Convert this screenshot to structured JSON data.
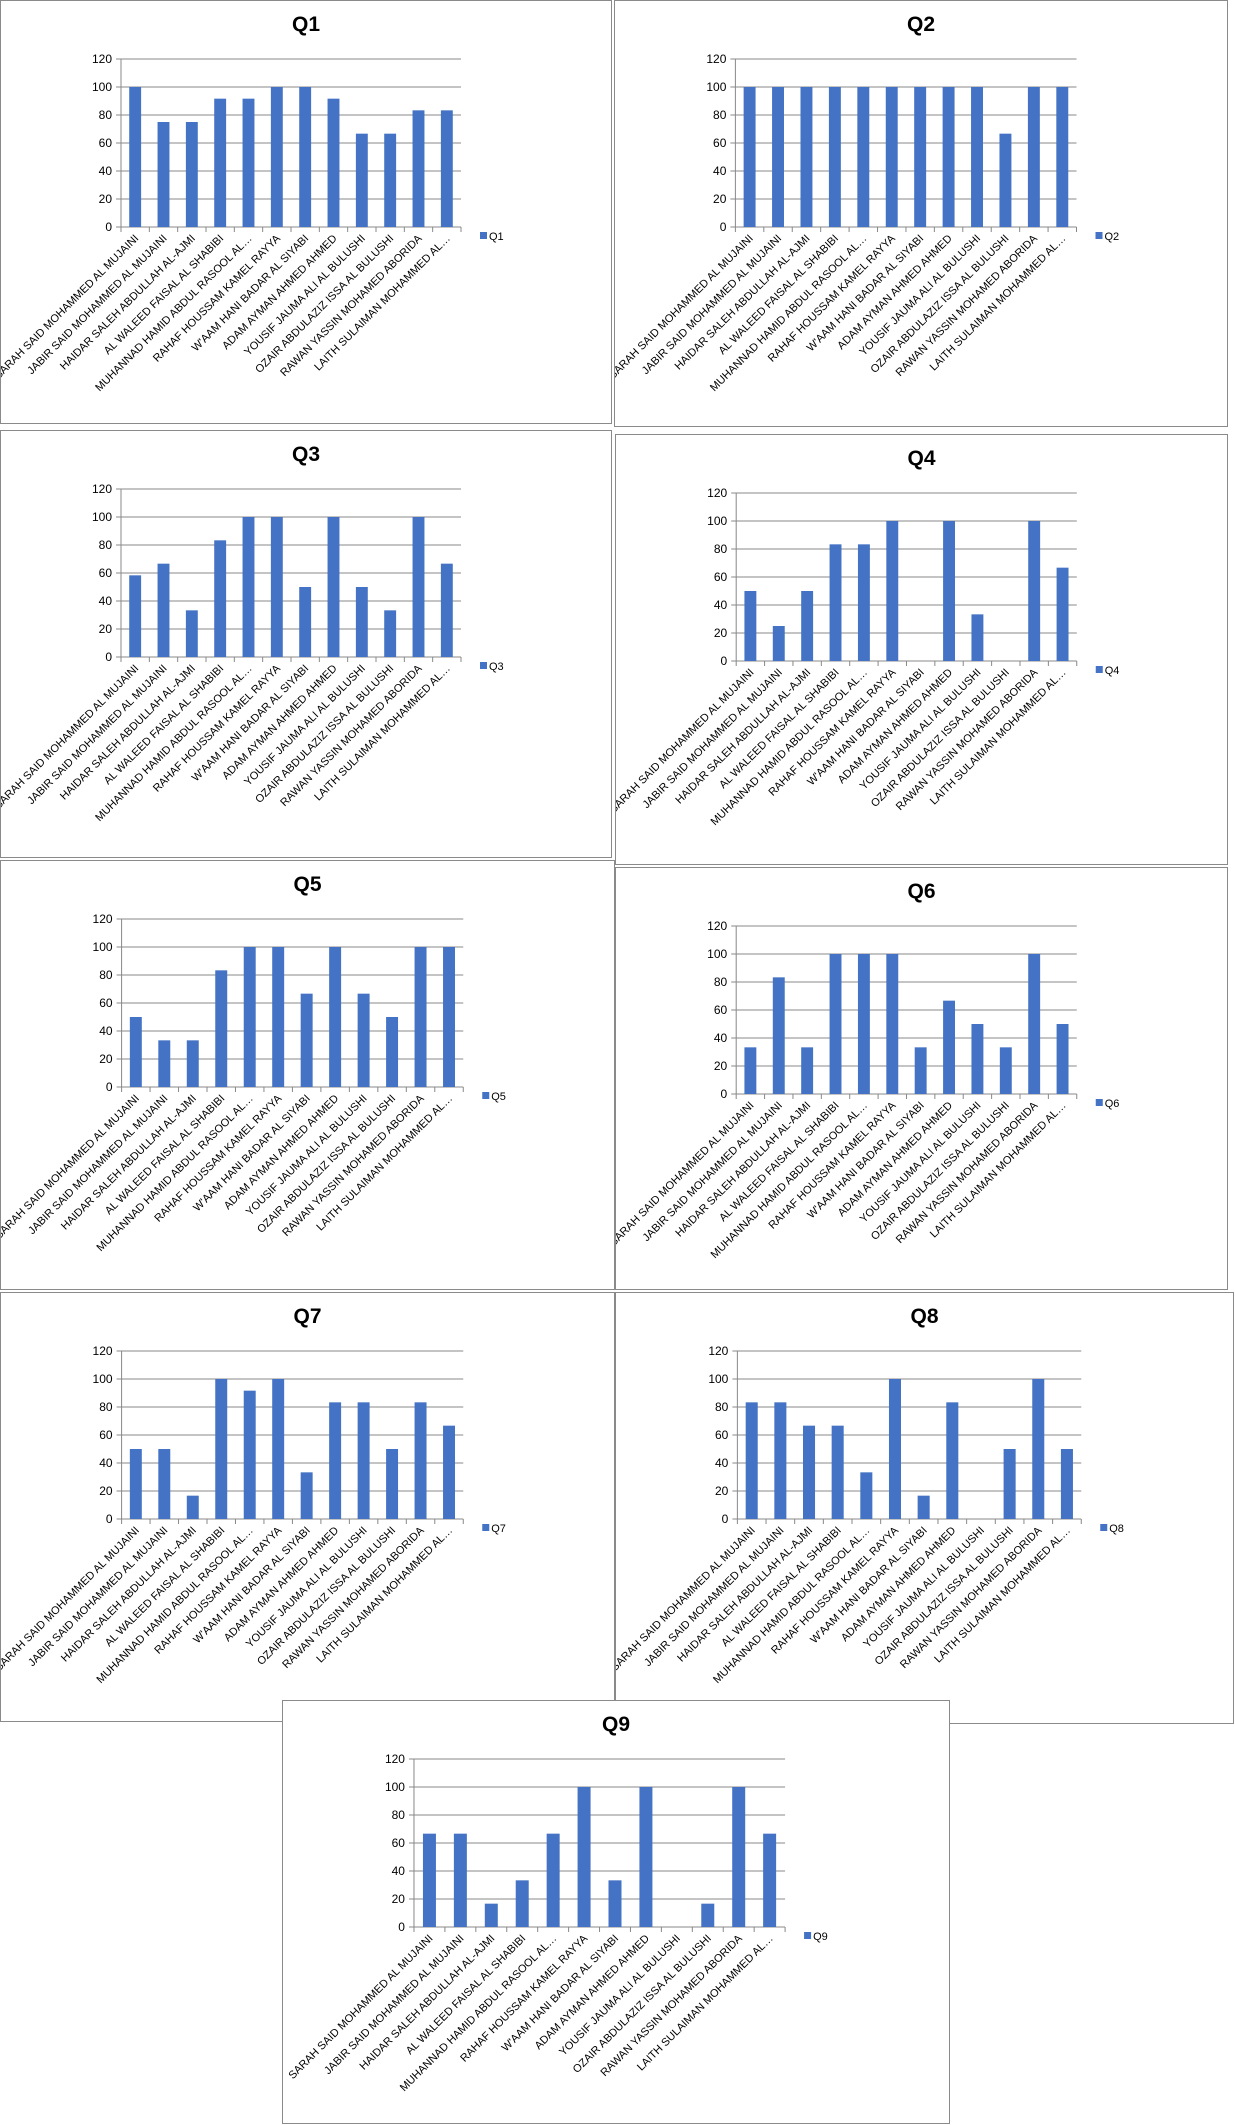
{
  "bar_color": "#4472C4",
  "chart_data": [
    {
      "type": "bar",
      "title": "Q1",
      "legend": "Q1",
      "legend_position": "right",
      "ylim": [
        0,
        120
      ],
      "yticks": [
        0,
        20,
        40,
        60,
        80,
        100,
        120
      ],
      "grid": true,
      "values": [
        100,
        75,
        75,
        91.67,
        91.67,
        100,
        100,
        91.67,
        66.67,
        66.67,
        83.33,
        83.33
      ]
    },
    {
      "type": "bar",
      "title": "Q2",
      "legend": "Q2",
      "legend_position": "right",
      "ylim": [
        0,
        120
      ],
      "yticks": [
        0,
        20,
        40,
        60,
        80,
        100,
        120
      ],
      "grid": true,
      "values": [
        100,
        100,
        100,
        100,
        100,
        100,
        100,
        100,
        100,
        66.67,
        100,
        100
      ]
    },
    {
      "type": "bar",
      "title": "Q3",
      "legend": "Q3",
      "legend_position": "right",
      "ylim": [
        0,
        120
      ],
      "yticks": [
        0,
        20,
        40,
        60,
        80,
        100,
        120
      ],
      "grid": true,
      "values": [
        58.33,
        66.67,
        33.33,
        83.33,
        100,
        100,
        50,
        100,
        50,
        33.33,
        100,
        66.67
      ]
    },
    {
      "type": "bar",
      "title": "Q4",
      "legend": "Q4",
      "legend_position": "right",
      "ylim": [
        0,
        120
      ],
      "yticks": [
        0,
        20,
        40,
        60,
        80,
        100,
        120
      ],
      "grid": true,
      "values": [
        50,
        25,
        50,
        83.33,
        83.33,
        100,
        0,
        100,
        33.33,
        0,
        100,
        66.67
      ]
    },
    {
      "type": "bar",
      "title": "Q5",
      "legend": "Q5",
      "legend_position": "right",
      "ylim": [
        0,
        120
      ],
      "yticks": [
        0,
        20,
        40,
        60,
        80,
        100,
        120
      ],
      "grid": true,
      "values": [
        50,
        33.33,
        33.33,
        83.33,
        100,
        100,
        66.67,
        100,
        66.67,
        50,
        100,
        100
      ]
    },
    {
      "type": "bar",
      "title": "Q6",
      "legend": "Q6",
      "legend_position": "right",
      "ylim": [
        0,
        120
      ],
      "yticks": [
        0,
        20,
        40,
        60,
        80,
        100,
        120
      ],
      "grid": true,
      "values": [
        33.33,
        83.33,
        33.33,
        100,
        100,
        100,
        33.33,
        66.67,
        50,
        33.33,
        100,
        50
      ]
    },
    {
      "type": "bar",
      "title": "Q7",
      "legend": "Q7",
      "legend_position": "right",
      "ylim": [
        0,
        120
      ],
      "yticks": [
        0,
        20,
        40,
        60,
        80,
        100,
        120
      ],
      "grid": true,
      "values": [
        50,
        50,
        16.67,
        100,
        91.67,
        100,
        33.33,
        83.33,
        83.33,
        50,
        83.33,
        66.67
      ]
    },
    {
      "type": "bar",
      "title": "Q8",
      "legend": "Q8",
      "legend_position": "right",
      "ylim": [
        0,
        120
      ],
      "yticks": [
        0,
        20,
        40,
        60,
        80,
        100,
        120
      ],
      "grid": true,
      "values": [
        83.33,
        83.33,
        66.67,
        66.67,
        33.33,
        100,
        16.67,
        83.33,
        0,
        50,
        100,
        50
      ]
    },
    {
      "type": "bar",
      "title": "Q9",
      "legend": "Q9",
      "legend_position": "right",
      "ylim": [
        0,
        120
      ],
      "yticks": [
        0,
        20,
        40,
        60,
        80,
        100,
        120
      ],
      "grid": true,
      "values": [
        66.67,
        66.67,
        16.67,
        33.33,
        66.67,
        100,
        33.33,
        100,
        0,
        16.67,
        100,
        66.67
      ]
    }
  ],
  "categories": [
    "SARAH SAID MOHAMMED AL MUJAINI",
    "JABIR SAID MOHAMMED AL MUJAINI",
    "HAIDAR SALEH ABDULLAH AL-AJMI",
    "AL WALEED FAISAL AL SHABIBI",
    "MUHANNAD HAMID ABDUL RASOOL AL…",
    "RAHAF HOUSSAM KAMEL RAYYA",
    "W'AAM HANI BADAR AL SIYABI",
    "ADAM AYMAN AHMED AHMED",
    "YOUSIF JAUMA ALI AL BULUSHI",
    "OZAIR ABDULAZIZ ISSA AL BULUSHI",
    "RAWAN YASSIN MOHAMED ABORIDA",
    "LAITH SULAIMAN MOHAMMED AL…"
  ]
}
